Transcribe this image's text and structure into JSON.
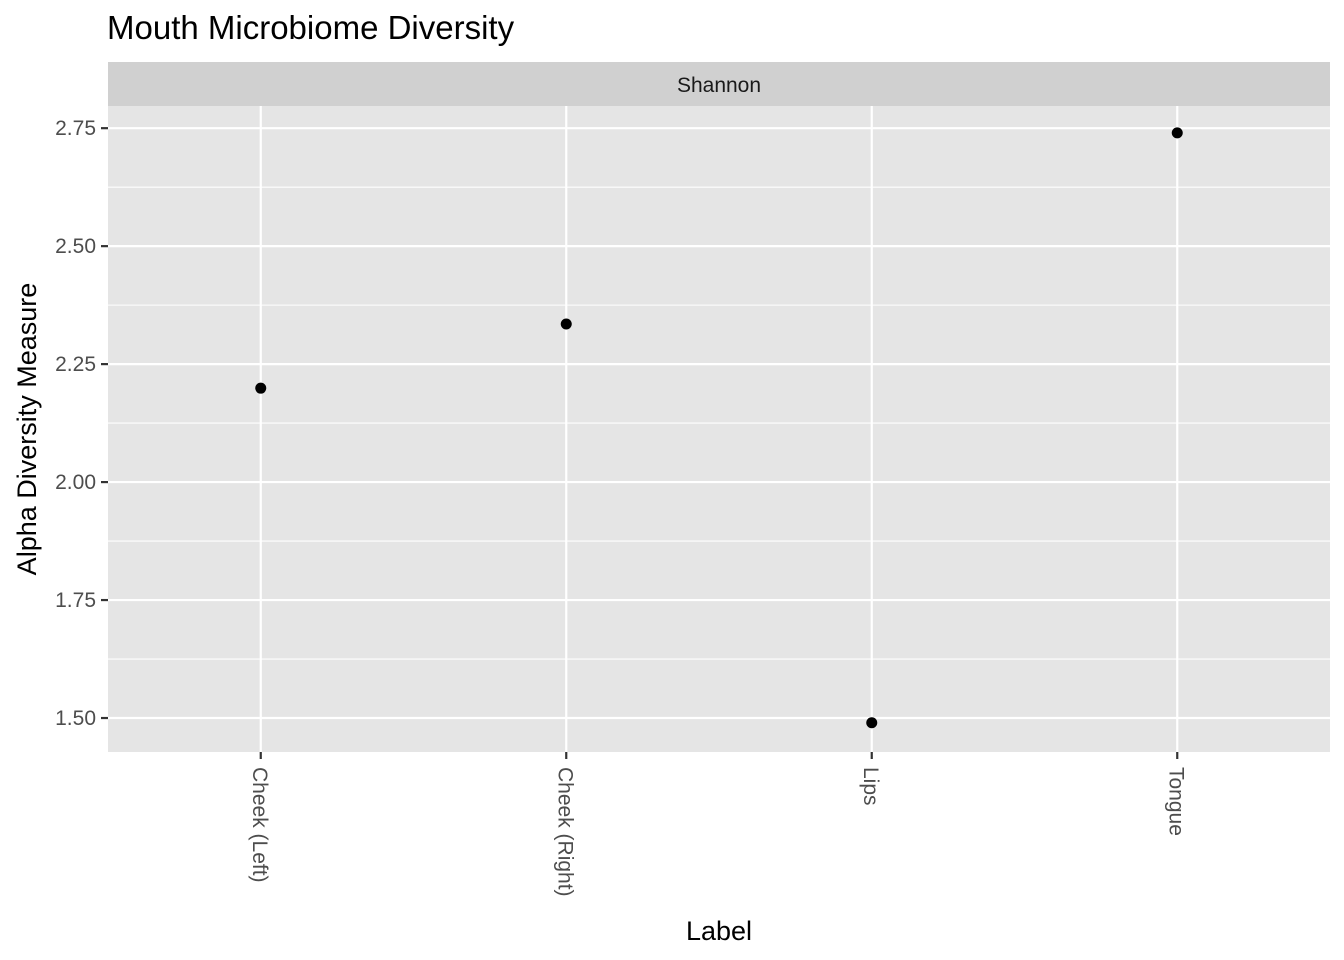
{
  "chart_data": {
    "type": "scatter",
    "title": "Mouth Microbiome Diversity",
    "facet": "Shannon",
    "xlabel": "Label",
    "ylabel": "Alpha Diversity Measure",
    "categories": [
      "Cheek (Left)",
      "Cheek (Right)",
      "Lips",
      "Tongue"
    ],
    "values": [
      2.199,
      2.335,
      1.49,
      2.74
    ],
    "ylim": [
      1.428,
      2.797
    ],
    "yticks": [
      1.5,
      1.75,
      2.0,
      2.25,
      2.5,
      2.75
    ],
    "ytick_labels": [
      "1.50",
      "1.75",
      "2.00",
      "2.25",
      "2.50",
      "2.75"
    ],
    "grid": true,
    "x_tick_label_rotation": "vertical",
    "point_color": "#000000",
    "panel_color": "#e5e5e5",
    "strip_color": "#d0d0d0",
    "grid_color": "#ffffff"
  }
}
